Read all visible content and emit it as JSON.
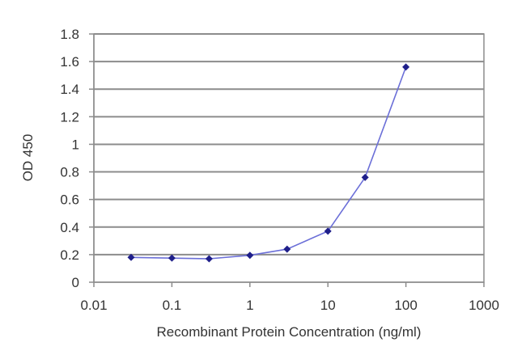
{
  "chart_data": {
    "type": "scatter",
    "xscale": "log",
    "xlabel": "Recombinant Protein Concentration (ng/ml)",
    "ylabel": "OD 450",
    "xlim": [
      0.01,
      1000
    ],
    "ylim": [
      0,
      1.8
    ],
    "x_ticks": [
      "0.01",
      "0.1",
      "1",
      "10",
      "100",
      "1000"
    ],
    "y_ticks": [
      "0",
      "0.2",
      "0.4",
      "0.6",
      "0.8",
      "1",
      "1.2",
      "1.4",
      "1.6",
      "1.8"
    ],
    "grid": true,
    "legend": "none",
    "series": [
      {
        "x": [
          0.03,
          0.1,
          0.3,
          1,
          3,
          10,
          30,
          100
        ],
        "y": [
          0.18,
          0.175,
          0.17,
          0.195,
          0.24,
          0.37,
          0.76,
          1.56
        ]
      }
    ],
    "colors": {
      "line": "#6b6fd8",
      "marker": "#1f1f8a",
      "grid": "#8c8c8c"
    }
  }
}
